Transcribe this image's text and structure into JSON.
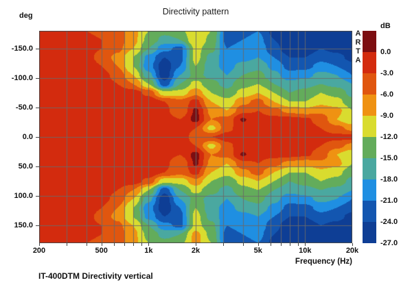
{
  "title": "Directivity pattern",
  "caption": "IT-400DTM Directivity vertical",
  "watermark": "ARTA",
  "axes": {
    "y_unit_label": "deg",
    "x_label": "Frequency (Hz)",
    "y_ticks": [
      {
        "label": "-150.0",
        "value": -150
      },
      {
        "label": "-100.0",
        "value": -100
      },
      {
        "label": "-50.0",
        "value": -50
      },
      {
        "label": "0.0",
        "value": 0
      },
      {
        "label": "50.0",
        "value": 50
      },
      {
        "label": "100.0",
        "value": 100
      },
      {
        "label": "150.0",
        "value": 150
      }
    ],
    "x_ticks": [
      {
        "label": "200",
        "value": 200
      },
      {
        "label": "500",
        "value": 500
      },
      {
        "label": "1k",
        "value": 1000
      },
      {
        "label": "2k",
        "value": 2000
      },
      {
        "label": "5k",
        "value": 5000
      },
      {
        "label": "10k",
        "value": 10000
      },
      {
        "label": "20k",
        "value": 20000
      }
    ]
  },
  "grid": {
    "x_lines": [
      300,
      400,
      500,
      600,
      700,
      800,
      900,
      1000,
      2000,
      3000,
      4000,
      5000,
      6000,
      7000,
      8000,
      9000,
      10000,
      20000
    ],
    "x_tick_marks": [
      200,
      300,
      400,
      500,
      600,
      700,
      800,
      900,
      1000,
      2000,
      3000,
      4000,
      5000,
      6000,
      7000,
      8000,
      9000,
      10000,
      20000
    ],
    "y_lines": [
      -150,
      -100,
      -50,
      0,
      50,
      100,
      150
    ],
    "line_color": "#696969"
  },
  "colorbar": {
    "unit_label": "dB",
    "tick_labels": [
      "0.0",
      "-3.0",
      "-6.0",
      "-9.0",
      "-12.0",
      "-15.0",
      "-18.0",
      "-21.0",
      "-24.0",
      "-27.0"
    ],
    "colors": [
      "#7D0E11",
      "#D32B0E",
      "#E0560F",
      "#EF9212",
      "#D9DC2F",
      "#63AC5B",
      "#4AA8A0",
      "#1F8FE2",
      "#1356B0",
      "#0E3E95"
    ]
  },
  "chart_data": {
    "type": "heatmap",
    "title": "Directivity pattern",
    "xlabel": "Frequency (Hz)",
    "ylabel": "deg",
    "x_scale": "log",
    "x_range": [
      200,
      20000
    ],
    "y_range": [
      -180,
      180
    ],
    "legend_title": "dB",
    "level_step_db": 3,
    "level_range_db": [
      0,
      -27
    ],
    "freqs": [
      200,
      250,
      315,
      400,
      500,
      630,
      800,
      1000,
      1250,
      1600,
      2000,
      2500,
      3150,
      4000,
      5000,
      6300,
      8000,
      10000,
      12500,
      16000,
      20000
    ],
    "angles": [
      -180,
      -165,
      -150,
      -135,
      -120,
      -105,
      -90,
      -75,
      -60,
      -45,
      -30,
      -15,
      0,
      15,
      30,
      45,
      60,
      75,
      90,
      105,
      120,
      135,
      150,
      165,
      180
    ],
    "values_db": [
      [
        -1,
        -1,
        -2,
        -3,
        -3.5,
        -4.5,
        -8,
        -12,
        -14,
        -13,
        -9,
        -12,
        -22,
        -22,
        -21,
        -25,
        -26,
        -26,
        -26,
        -26,
        -26
      ],
      [
        -1,
        -1,
        -1.5,
        -2.5,
        -3,
        -4,
        -8,
        -13,
        -16,
        -15,
        -9,
        -13,
        -22,
        -21,
        -20,
        -24,
        -26,
        -26,
        -25,
        -26,
        -26
      ],
      [
        -1,
        -1,
        -1,
        -2,
        -3,
        -5,
        -9,
        -15,
        -20,
        -22,
        -11,
        -14,
        -21,
        -20,
        -19,
        -23,
        -26,
        -26,
        -24,
        -25,
        -26
      ],
      [
        -1,
        -1,
        -1,
        -2,
        -4,
        -7,
        -12,
        -19,
        -24,
        -22,
        -11,
        -16,
        -20,
        -19,
        -18,
        -21,
        -24,
        -24,
        -22,
        -23,
        -25
      ],
      [
        -1,
        -1,
        -1,
        -1.5,
        -3,
        -6,
        -12,
        -20,
        -26,
        -21,
        -12,
        -17,
        -19,
        -17,
        -16,
        -19,
        -22,
        -22,
        -20,
        -21,
        -23
      ],
      [
        -1,
        -1,
        -1,
        -1,
        -2,
        -4,
        -9,
        -17,
        -26,
        -18,
        -14,
        -16,
        -18,
        -15,
        -14,
        -17,
        -20,
        -19,
        -17,
        -18,
        -21
      ],
      [
        -1,
        -1,
        -1,
        -1,
        -1.5,
        -3,
        -6,
        -12,
        -23,
        -15,
        -11,
        -14,
        -16,
        -13,
        -12,
        -15,
        -17,
        -16,
        -15,
        -16,
        -18
      ],
      [
        -1,
        -1,
        -1,
        -1,
        -1,
        -1,
        -1.5,
        -4,
        -11,
        -11,
        -7,
        -12,
        -14,
        -11,
        -9,
        -12,
        -15,
        -14,
        -12,
        -13,
        -16
      ],
      [
        -1,
        -1,
        -1,
        -1,
        -1,
        -1,
        -1,
        -1,
        -3,
        -5,
        -2,
        -9,
        -11,
        -7,
        -5,
        -9,
        -12,
        -12,
        -10,
        -11,
        -14
      ],
      [
        -1,
        -1,
        -1,
        -1,
        -1,
        -1,
        -1,
        -1,
        -2,
        -6,
        0.5,
        -7,
        -9,
        -4,
        -3,
        -5,
        -7,
        -8,
        -7,
        -8,
        -12
      ],
      [
        -1,
        -1,
        -1,
        -1,
        -1,
        -1,
        -1,
        -1,
        -1.5,
        -3,
        1,
        -6,
        -5,
        0.3,
        -2,
        -2,
        -2,
        -2.5,
        -4,
        -9,
        -12
      ],
      [
        -1,
        -1,
        -1,
        -1,
        -1,
        -1,
        -1,
        -1,
        -1,
        -2,
        -3,
        -10,
        -4,
        -1,
        -1,
        -2,
        -2,
        -2,
        -3,
        -5,
        -7
      ],
      [
        -1,
        -1,
        -1,
        -1,
        -1,
        -1,
        -1,
        -1,
        -1,
        -1.5,
        -4,
        -3,
        -1.5,
        -1,
        -1,
        -1.5,
        -2,
        -2,
        -2,
        -2,
        -2
      ],
      [
        -1,
        -1,
        -1,
        -1,
        -1,
        -1,
        -1,
        -1,
        -1,
        -2,
        -3,
        -10,
        -4,
        -1,
        -1,
        -2,
        -2,
        -2,
        -3,
        -5,
        -7
      ],
      [
        -1,
        -1,
        -1,
        -1,
        -1,
        -1,
        -1,
        -1,
        -1.5,
        -3,
        1,
        -6,
        -5,
        0.3,
        -2,
        -2,
        -2,
        -2.5,
        -4,
        -9,
        -12
      ],
      [
        -1,
        -1,
        -1,
        -1,
        -1,
        -1,
        -1,
        -1,
        -2,
        -6,
        0.5,
        -7,
        -9,
        -4,
        -3,
        -5,
        -7,
        -8,
        -7,
        -8,
        -12
      ],
      [
        -1,
        -1,
        -1,
        -1,
        -1,
        -1,
        -1,
        -1,
        -3,
        -5,
        -2,
        -9,
        -11,
        -7,
        -5,
        -9,
        -12,
        -12,
        -10,
        -11,
        -14
      ],
      [
        -1,
        -1,
        -1,
        -1,
        -1,
        -1,
        -1.5,
        -4,
        -11,
        -11,
        -7,
        -12,
        -14,
        -11,
        -9,
        -12,
        -15,
        -14,
        -12,
        -13,
        -16
      ],
      [
        -1,
        -1,
        -1,
        -1,
        -1.5,
        -3,
        -6,
        -12,
        -23,
        -15,
        -11,
        -14,
        -16,
        -13,
        -12,
        -15,
        -17,
        -16,
        -15,
        -16,
        -18
      ],
      [
        -1,
        -1,
        -1,
        -1,
        -2,
        -4,
        -9,
        -17,
        -26,
        -18,
        -14,
        -16,
        -18,
        -15,
        -14,
        -17,
        -20,
        -19,
        -17,
        -18,
        -21
      ],
      [
        -1,
        -1,
        -1,
        -1.5,
        -3,
        -6,
        -12,
        -20,
        -26,
        -21,
        -12,
        -17,
        -19,
        -17,
        -16,
        -19,
        -22,
        -22,
        -20,
        -21,
        -23
      ],
      [
        -1,
        -1,
        -1,
        -2,
        -4,
        -7,
        -12,
        -19,
        -24,
        -22,
        -11,
        -16,
        -20,
        -19,
        -18,
        -21,
        -24,
        -24,
        -22,
        -23,
        -25
      ],
      [
        -1,
        -1,
        -1,
        -2,
        -3,
        -5,
        -9,
        -15,
        -20,
        -22,
        -11,
        -14,
        -21,
        -20,
        -19,
        -23,
        -26,
        -26,
        -24,
        -25,
        -26
      ],
      [
        -1,
        -1,
        -1.5,
        -2.5,
        -3,
        -4,
        -8,
        -13,
        -16,
        -15,
        -8,
        -13,
        -22,
        -21,
        -20,
        -24,
        -26,
        -26,
        -25,
        -26,
        -26
      ],
      [
        -1,
        -1,
        -2,
        -3,
        -3.5,
        -4.5,
        -8,
        -12,
        -14,
        -13,
        -8,
        -12,
        -22,
        -22,
        -21,
        -25,
        -26,
        -26,
        -26,
        -26,
        -26
      ]
    ]
  }
}
